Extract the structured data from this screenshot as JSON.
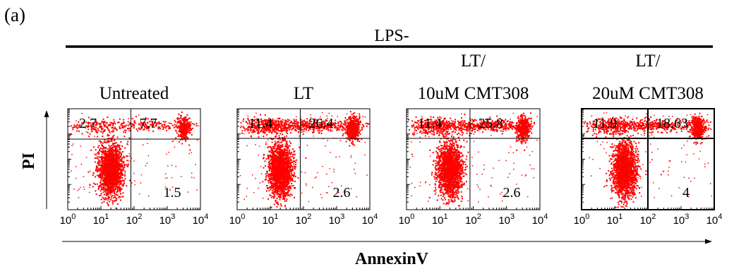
{
  "figure": {
    "panel_label": "(a)",
    "group_label": "LPS-",
    "y_axis_label": "PI",
    "x_axis_label": "AnnexinV"
  },
  "colors": {
    "dots": "#ff0000",
    "lines": "#000000"
  },
  "chart_data": [
    {
      "type": "scatter",
      "title_lines": [
        "Untreated"
      ],
      "xscale": "log",
      "xlim": [
        1,
        10000
      ],
      "xticks": [
        {
          "base": "10",
          "exp": "0"
        },
        {
          "base": "10",
          "exp": "1"
        },
        {
          "base": "10",
          "exp": "2"
        },
        {
          "base": "10",
          "exp": "3"
        },
        {
          "base": "10",
          "exp": "4"
        }
      ],
      "quadrant_gate_x": 80,
      "quadrants": {
        "upper_left": "2.7",
        "upper_right": "7.7",
        "lower_right": "1.5"
      }
    },
    {
      "type": "scatter",
      "title_lines": [
        "LT"
      ],
      "xscale": "log",
      "xlim": [
        1,
        10000
      ],
      "xticks": [
        {
          "base": "10",
          "exp": "0"
        },
        {
          "base": "10",
          "exp": "1"
        },
        {
          "base": "10",
          "exp": "2"
        },
        {
          "base": "10",
          "exp": "3"
        },
        {
          "base": "10",
          "exp": "4"
        }
      ],
      "quadrant_gate_x": 80,
      "quadrants": {
        "upper_left": "11.4",
        "upper_right": "26.4",
        "lower_right": "2.6"
      }
    },
    {
      "type": "scatter",
      "title_lines": [
        "LT/",
        "10uM CMT308"
      ],
      "xscale": "log",
      "xlim": [
        1,
        10000
      ],
      "xticks": [
        {
          "base": "10",
          "exp": "0"
        },
        {
          "base": "10",
          "exp": "1"
        },
        {
          "base": "10",
          "exp": "2"
        },
        {
          "base": "10",
          "exp": "3"
        },
        {
          "base": "10",
          "exp": "4"
        }
      ],
      "quadrant_gate_x": 80,
      "quadrants": {
        "upper_left": "11.4",
        "upper_right": "25.8",
        "lower_right": "2.6"
      }
    },
    {
      "type": "scatter",
      "title_lines": [
        "LT/",
        "20uM CMT308"
      ],
      "xscale": "log",
      "xlim": [
        1,
        10000
      ],
      "xticks": [
        {
          "base": "10",
          "exp": "0"
        },
        {
          "base": "10",
          "exp": "1"
        },
        {
          "base": "10",
          "exp": "2"
        },
        {
          "base": "10",
          "exp": "3"
        },
        {
          "base": "10",
          "exp": "4"
        }
      ],
      "quadrant_gate_x": 100,
      "quadrants": {
        "upper_left": "11.9",
        "upper_right": "18.63",
        "lower_right": "4"
      }
    }
  ]
}
